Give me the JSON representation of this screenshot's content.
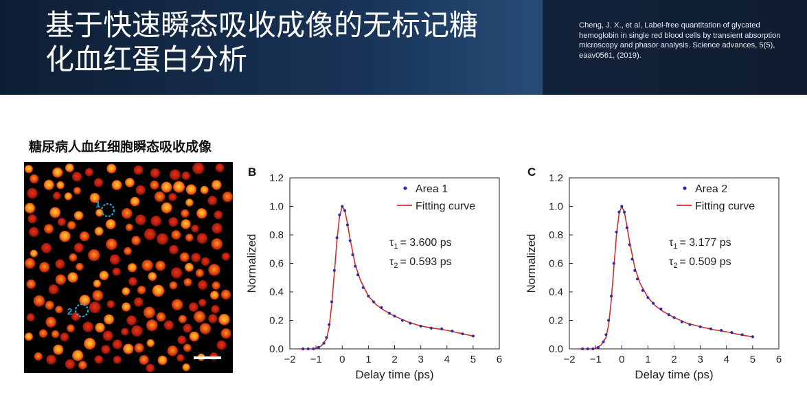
{
  "header": {
    "title_line1": "基于快速瞬态吸收成像的无标记糖",
    "title_line2": "化血红蛋白分析",
    "reference": "Cheng, J. X., et al, Label-free quantitation of glycated hemoglobin in single red blood cells by transient absorption microscopy and phasor analysis. Science advances, 5(5), eaav0561, (2019)."
  },
  "section": {
    "label": "糖尿病人血红细胞瞬态吸收成像"
  },
  "micrograph": {
    "markers": [
      {
        "label": "1"
      },
      {
        "label": "2"
      }
    ],
    "colors": {
      "background": "#000000",
      "cell_dim": "#b01010",
      "cell_bright": "#ffb020",
      "marker": "#29a8e0",
      "scalebar": "#ffffff"
    }
  },
  "chart_data": [
    {
      "type": "scatter",
      "panel_label": "B",
      "xlabel": "Delay time (ps)",
      "ylabel": "Normalized",
      "xlim": [
        -2,
        6
      ],
      "ylim": [
        0,
        1.2
      ],
      "xticks": [
        "−2",
        "−1",
        "0",
        "1",
        "2",
        "3",
        "4",
        "5",
        "6"
      ],
      "yticks": [
        "0.0",
        "0.2",
        "0.4",
        "0.6",
        "0.8",
        "1.0",
        "1.2"
      ],
      "legend": [
        "Area 1",
        "Fitting curve"
      ],
      "annotations": {
        "tau1_value": "= 3.600 ps",
        "tau2_value": "= 0.593 ps"
      },
      "series": [
        {
          "name": "Area 1",
          "kind": "points",
          "color": "#2b2fa8",
          "x": [
            -1.5,
            -1.3,
            -1.1,
            -0.9,
            -0.7,
            -0.6,
            -0.5,
            -0.4,
            -0.3,
            -0.2,
            -0.1,
            0.0,
            0.1,
            0.2,
            0.3,
            0.4,
            0.5,
            0.6,
            0.8,
            1.0,
            1.2,
            1.5,
            1.8,
            2.0,
            2.3,
            2.6,
            3.0,
            3.4,
            3.8,
            4.2,
            4.6,
            5.0
          ],
          "y": [
            0.0,
            0.0,
            0.0,
            0.01,
            0.04,
            0.08,
            0.17,
            0.33,
            0.55,
            0.78,
            0.94,
            1.0,
            0.97,
            0.87,
            0.76,
            0.66,
            0.58,
            0.52,
            0.43,
            0.37,
            0.33,
            0.29,
            0.25,
            0.23,
            0.2,
            0.18,
            0.16,
            0.145,
            0.14,
            0.125,
            0.105,
            0.09
          ]
        },
        {
          "name": "Fitting curve",
          "kind": "line",
          "color": "#d42a2a",
          "x": [
            -1.7,
            -1.2,
            -1.0,
            -0.8,
            -0.6,
            -0.5,
            -0.4,
            -0.3,
            -0.2,
            -0.1,
            0.0,
            0.1,
            0.2,
            0.3,
            0.5,
            0.7,
            1.0,
            1.3,
            1.6,
            2.0,
            2.5,
            3.0,
            3.5,
            4.0,
            4.5,
            5.0
          ],
          "y": [
            0.0,
            0.0,
            0.005,
            0.02,
            0.07,
            0.15,
            0.31,
            0.53,
            0.76,
            0.93,
            1.0,
            0.97,
            0.88,
            0.77,
            0.59,
            0.48,
            0.37,
            0.31,
            0.27,
            0.23,
            0.19,
            0.16,
            0.145,
            0.13,
            0.11,
            0.09
          ]
        }
      ]
    },
    {
      "type": "scatter",
      "panel_label": "C",
      "xlabel": "Delay time (ps)",
      "ylabel": "Normalized",
      "xlim": [
        -2,
        6
      ],
      "ylim": [
        0,
        1.2
      ],
      "xticks": [
        "−2",
        "−1",
        "0",
        "1",
        "2",
        "3",
        "4",
        "5",
        "6"
      ],
      "yticks": [
        "0.0",
        "0.2",
        "0.4",
        "0.6",
        "0.8",
        "1.0",
        "1.2"
      ],
      "legend": [
        "Area 2",
        "Fitting curve"
      ],
      "annotations": {
        "tau1_value": "= 3.177 ps",
        "tau2_value": "= 0.509 ps"
      },
      "series": [
        {
          "name": "Area 2",
          "kind": "points",
          "color": "#2b2fa8",
          "x": [
            -1.5,
            -1.3,
            -1.1,
            -0.9,
            -0.7,
            -0.6,
            -0.5,
            -0.4,
            -0.3,
            -0.2,
            -0.1,
            0.0,
            0.1,
            0.2,
            0.3,
            0.4,
            0.5,
            0.6,
            0.8,
            1.0,
            1.2,
            1.5,
            1.8,
            2.0,
            2.3,
            2.6,
            3.0,
            3.4,
            3.8,
            4.2,
            4.6,
            5.0
          ],
          "y": [
            0.0,
            0.0,
            0.0,
            0.01,
            0.05,
            0.1,
            0.2,
            0.37,
            0.6,
            0.82,
            0.96,
            1.0,
            0.96,
            0.85,
            0.73,
            0.63,
            0.55,
            0.49,
            0.41,
            0.36,
            0.32,
            0.28,
            0.24,
            0.22,
            0.19,
            0.17,
            0.155,
            0.14,
            0.13,
            0.115,
            0.1,
            0.085
          ]
        },
        {
          "name": "Fitting curve",
          "kind": "line",
          "color": "#d42a2a",
          "x": [
            -1.7,
            -1.2,
            -1.0,
            -0.8,
            -0.6,
            -0.5,
            -0.4,
            -0.3,
            -0.2,
            -0.1,
            0.0,
            0.1,
            0.2,
            0.3,
            0.5,
            0.7,
            1.0,
            1.3,
            1.6,
            2.0,
            2.5,
            3.0,
            3.5,
            4.0,
            4.5,
            5.0
          ],
          "y": [
            0.0,
            0.0,
            0.005,
            0.025,
            0.08,
            0.17,
            0.34,
            0.57,
            0.8,
            0.95,
            1.0,
            0.96,
            0.86,
            0.75,
            0.57,
            0.46,
            0.36,
            0.3,
            0.26,
            0.22,
            0.18,
            0.155,
            0.135,
            0.12,
            0.1,
            0.085
          ]
        }
      ]
    }
  ]
}
